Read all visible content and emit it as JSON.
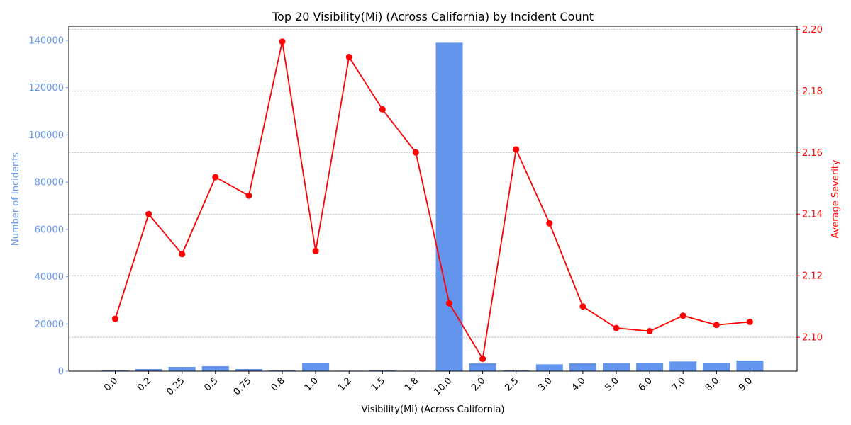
{
  "chart_data": {
    "type": "bar",
    "title": "Top 20 Visibility(Mi) (Across California) by Incident Count",
    "xlabel": "Visibility(Mi) (Across California)",
    "ylabel_left": "Number of Incidents",
    "ylabel_right": "Average Severity",
    "categories": [
      "0.0",
      "0.2",
      "0.25",
      "0.5",
      "0.75",
      "0.8",
      "1.0",
      "1.2",
      "1.5",
      "1.8",
      "10.0",
      "2.0",
      "2.5",
      "3.0",
      "4.0",
      "5.0",
      "6.0",
      "7.0",
      "8.0",
      "9.0"
    ],
    "series": [
      {
        "axis": "left",
        "type": "bar",
        "color": "#6495ED",
        "values": [
          300,
          900,
          1800,
          2100,
          900,
          300,
          3600,
          200,
          300,
          200,
          139000,
          3300,
          300,
          2900,
          3300,
          3500,
          3600,
          4100,
          3600,
          4500
        ]
      },
      {
        "axis": "right",
        "type": "line",
        "color": "#FF0000",
        "values": [
          2.106,
          2.14,
          2.127,
          2.152,
          2.146,
          2.196,
          2.128,
          2.191,
          2.174,
          2.16,
          2.111,
          2.093,
          2.161,
          2.137,
          2.11,
          2.103,
          2.102,
          2.107,
          2.104,
          2.105
        ]
      }
    ],
    "ylim_left": [
      0,
      146000
    ],
    "yticks_left": [
      "0",
      "20000",
      "40000",
      "60000",
      "80000",
      "100000",
      "120000",
      "140000"
    ],
    "ylim_right": [
      2.089,
      2.201
    ],
    "yticks_right": [
      "2.10",
      "2.12",
      "2.14",
      "2.16",
      "2.18",
      "2.20"
    ],
    "grid": "horizontal (right axis)"
  }
}
